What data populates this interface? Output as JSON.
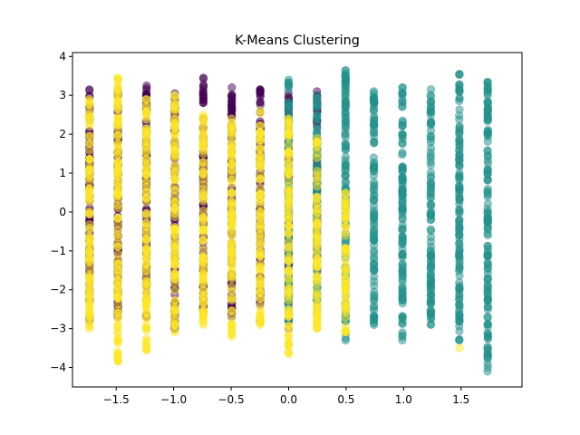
{
  "chart_data": {
    "type": "scatter",
    "title": "K-Means Clustering",
    "xlabel": "",
    "ylabel": "",
    "xlim": [
      -1.88,
      2.03
    ],
    "ylim": [
      -4.5,
      4.1
    ],
    "x_ticks": [
      -1.5,
      -1.0,
      -0.5,
      0.0,
      0.5,
      1.0,
      1.5
    ],
    "x_tick_labels": [
      "−1.5",
      "−1.0",
      "−0.5",
      "0.0",
      "0.5",
      "1.0",
      "1.5"
    ],
    "y_ticks": [
      -4,
      -3,
      -2,
      -1,
      0,
      1,
      2,
      3,
      4
    ],
    "y_tick_labels": [
      "−4",
      "−3",
      "−2",
      "−1",
      "0",
      "1",
      "2",
      "3",
      "4"
    ],
    "grid": false,
    "legend": "none",
    "point_alpha": 0.5,
    "x_columns": [
      -1.732,
      -1.485,
      -1.237,
      -0.99,
      -0.742,
      -0.495,
      -0.247,
      0.0,
      0.247,
      0.495,
      0.742,
      0.99,
      1.237,
      1.485,
      1.732
    ],
    "series": [
      {
        "color": "#440154",
        "columns": [
          {
            "x": -1.732,
            "ymin": -2.8,
            "ymax": 3.15
          },
          {
            "x": -1.485,
            "ymin": -2.7,
            "ymax": 3.15
          },
          {
            "x": -1.237,
            "ymin": -2.7,
            "ymax": 3.25
          },
          {
            "x": -0.99,
            "ymin": -3.0,
            "ymax": 3.05
          },
          {
            "x": -0.742,
            "ymin": -2.6,
            "ymax": 3.45
          },
          {
            "x": -0.495,
            "ymin": -2.7,
            "ymax": 3.2
          },
          {
            "x": -0.247,
            "ymin": -2.8,
            "ymax": 3.15
          },
          {
            "x": 0.0,
            "ymin": -3.0,
            "ymax": 3.05
          },
          {
            "x": 0.247,
            "ymin": -1.5,
            "ymax": 3.1
          }
        ]
      },
      {
        "color": "#21918c",
        "columns": [
          {
            "x": 0.0,
            "ymin": -2.8,
            "ymax": 3.4
          },
          {
            "x": 0.247,
            "ymin": -2.6,
            "ymax": 3.0
          },
          {
            "x": 0.495,
            "ymin": -3.3,
            "ymax": 3.65
          },
          {
            "x": 0.742,
            "ymin": -2.9,
            "ymax": 3.1
          },
          {
            "x": 0.99,
            "ymin": -3.3,
            "ymax": 3.2
          },
          {
            "x": 1.237,
            "ymin": -2.9,
            "ymax": 3.15
          },
          {
            "x": 1.485,
            "ymin": -3.3,
            "ymax": 3.55
          },
          {
            "x": 1.732,
            "ymin": -4.1,
            "ymax": 3.35
          }
        ]
      },
      {
        "color": "#fde725",
        "columns": [
          {
            "x": -1.732,
            "ymin": -3.0,
            "ymax": 2.9
          },
          {
            "x": -1.485,
            "ymin": -3.85,
            "ymax": 3.45
          },
          {
            "x": -1.237,
            "ymin": -3.55,
            "ymax": 2.9
          },
          {
            "x": -0.99,
            "ymin": -3.1,
            "ymax": 3.0
          },
          {
            "x": -0.742,
            "ymin": -2.9,
            "ymax": 2.5
          },
          {
            "x": -0.495,
            "ymin": -3.2,
            "ymax": 2.4
          },
          {
            "x": -0.247,
            "ymin": -2.9,
            "ymax": 2.6
          },
          {
            "x": 0.0,
            "ymin": -3.65,
            "ymax": 2.4
          },
          {
            "x": 0.247,
            "ymin": -3.0,
            "ymax": 1.9
          },
          {
            "x": 0.495,
            "ymin": -3.1,
            "ymax": 0.5
          },
          {
            "x": 1.485,
            "ymin": -3.5,
            "ymax": -3.5
          }
        ]
      }
    ]
  }
}
